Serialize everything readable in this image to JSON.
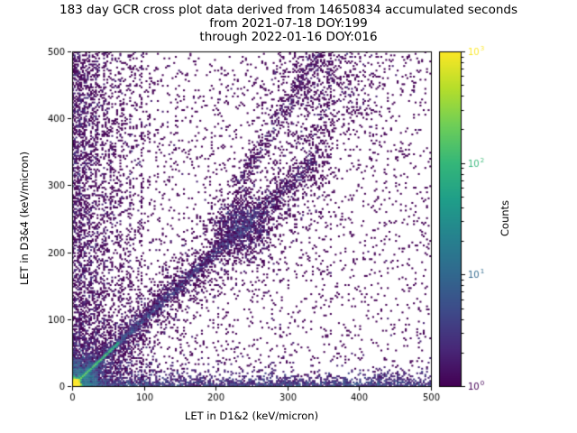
{
  "chart_data": {
    "type": "heatmap",
    "title": "183 day GCR cross plot data derived from 14650834 accumulated seconds",
    "subtitle_from": "from 2021-07-18 DOY:199",
    "subtitle_through": "through 2022-01-16 DOY:016",
    "xlabel": "LET in D1&2 (keV/micron)",
    "ylabel": "LET in D3&4 (keV/micron)",
    "xlim": [
      0,
      500
    ],
    "ylim": [
      0,
      500
    ],
    "xticks": [
      0,
      100,
      200,
      300,
      400,
      500
    ],
    "yticks": [
      0,
      100,
      200,
      300,
      400,
      500
    ],
    "grid": false,
    "colorbar": {
      "label": "Counts",
      "scale": "log",
      "min": 1,
      "max": 1000,
      "tick_exponents": [
        0,
        1,
        2,
        3
      ],
      "colormap": "viridis",
      "colors": [
        "#440154",
        "#482878",
        "#3e4a89",
        "#31688e",
        "#26828e",
        "#1f9e89",
        "#35b779",
        "#6ece58",
        "#b5de2b",
        "#fde725"
      ]
    },
    "seed": 7,
    "features": [
      {
        "name": "origin-core",
        "type": "gaussian",
        "cx": 4,
        "cy": 4,
        "sx": 3,
        "sy": 3,
        "n": 1500,
        "weight": 60
      },
      {
        "name": "origin-halo",
        "type": "gaussian",
        "cx": 8,
        "cy": 8,
        "sx": 16,
        "sy": 16,
        "n": 2400,
        "weight": 2
      },
      {
        "name": "origin-wide",
        "type": "gaussian",
        "cx": 15,
        "cy": 15,
        "sx": 40,
        "sy": 40,
        "n": 1500,
        "weight": 1
      },
      {
        "name": "bright-diagonal",
        "type": "diag",
        "x0": 0,
        "x1": 65,
        "spread": 1.2,
        "n": 900,
        "weight": 8,
        "taper": 1.6
      },
      {
        "name": "main-diagonal",
        "type": "diag",
        "x0": 0,
        "x1": 340,
        "spread": 5,
        "n": 2300,
        "weight": 1,
        "taper": 1.8
      },
      {
        "name": "diagonal-cloud",
        "type": "diag",
        "x0": 20,
        "x1": 360,
        "spread": 26,
        "n": 2000,
        "weight": 1,
        "taper": 1.2
      },
      {
        "name": "diagonal-blob",
        "type": "gaussian",
        "cx": 237,
        "cy": 239,
        "sx": 20,
        "sy": 22,
        "n": 900,
        "weight": 1
      },
      {
        "name": "upper-streak",
        "type": "line",
        "x0": 230,
        "y0": 300,
        "x1": 345,
        "y1": 500,
        "spread": 6,
        "n": 420,
        "weight": 1
      },
      {
        "name": "upper-cloud",
        "type": "gaussian",
        "cx": 355,
        "cy": 455,
        "sx": 42,
        "sy": 48,
        "n": 650,
        "weight": 1
      },
      {
        "name": "left-column",
        "type": "expx",
        "scale": 35,
        "n": 2600,
        "weight": 1
      },
      {
        "name": "bottom-band",
        "type": "expy",
        "scale": 8,
        "n": 1600,
        "weight": 2
      },
      {
        "name": "vertical-stripes",
        "type": "stripes",
        "xs": [
          10,
          17,
          25,
          34,
          44,
          55,
          67,
          81,
          96
        ],
        "spread": 1.1,
        "ypow": 1.35,
        "n": 950,
        "weight": 1
      },
      {
        "name": "background",
        "type": "uniform",
        "n": 2700,
        "weight": 1
      }
    ]
  }
}
